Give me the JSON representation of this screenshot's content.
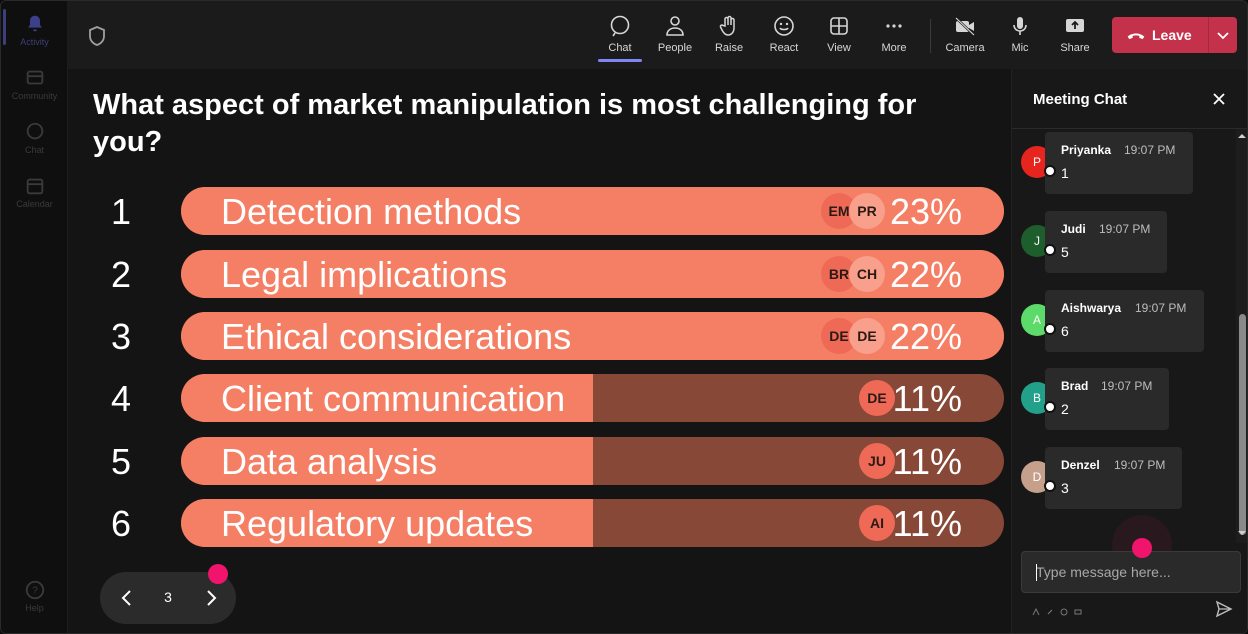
{
  "rail": {
    "items": [
      {
        "label": "Activity",
        "icon": "bell-icon"
      },
      {
        "label": "Community",
        "icon": "community-icon"
      },
      {
        "label": "Chat",
        "icon": "chat-icon"
      },
      {
        "label": "Calendar",
        "icon": "calendar-icon"
      }
    ],
    "help_label": "Help"
  },
  "toolbar": {
    "buttons": [
      {
        "label": "Chat",
        "icon": "chat-icon"
      },
      {
        "label": "People",
        "icon": "people-icon"
      },
      {
        "label": "Raise",
        "icon": "raise-hand-icon"
      },
      {
        "label": "React",
        "icon": "smiley-icon"
      },
      {
        "label": "View",
        "icon": "grid-view-icon"
      },
      {
        "label": "More",
        "icon": "more-icon"
      },
      {
        "label": "Camera",
        "icon": "camera-off-icon"
      },
      {
        "label": "Mic",
        "icon": "mic-icon"
      },
      {
        "label": "Share",
        "icon": "share-icon"
      }
    ],
    "leave_label": "Leave",
    "leave_color": "#c4314b",
    "accent_color": "#7f85f5"
  },
  "poll": {
    "question": "What aspect of market manipulation is most challenging for you?",
    "options": [
      {
        "num": "1",
        "label": "Detection methods",
        "percent_text": "23%",
        "fill_fraction": 1.0,
        "avatars": [
          "EM",
          "PR"
        ]
      },
      {
        "num": "2",
        "label": "Legal implications",
        "percent_text": "22%",
        "fill_fraction": 1.0,
        "avatars": [
          "BR",
          "CH"
        ]
      },
      {
        "num": "3",
        "label": "Ethical considerations",
        "percent_text": "22%",
        "fill_fraction": 1.0,
        "avatars": [
          "DE",
          "DE"
        ]
      },
      {
        "num": "4",
        "label": "Client communication",
        "percent_text": "11%",
        "fill_fraction": 0.5,
        "avatars": [
          "DE"
        ]
      },
      {
        "num": "5",
        "label": "Data analysis",
        "percent_text": "11%",
        "fill_fraction": 0.5,
        "avatars": [
          "JU"
        ]
      },
      {
        "num": "6",
        "label": "Regulatory updates",
        "percent_text": "11%",
        "fill_fraction": 0.5,
        "avatars": [
          "AI"
        ]
      }
    ],
    "bar_color": "#f47f64",
    "bar_track_color": "#874837"
  },
  "pager": {
    "page": "3"
  },
  "chat": {
    "title": "Meeting Chat",
    "messages": [
      {
        "initial": "P",
        "name": "Priyanka",
        "time": "19:07 PM",
        "text": "1",
        "color": "#e5251e"
      },
      {
        "initial": "J",
        "name": "Judi",
        "time": "19:07 PM",
        "text": "5",
        "color": "#1d5e2c"
      },
      {
        "initial": "A",
        "name": "Aishwarya",
        "time": "19:07 PM",
        "text": "6",
        "color": "#5cdb6a"
      },
      {
        "initial": "B",
        "name": "Brad",
        "time": "19:07 PM",
        "text": "2",
        "color": "#23a08a"
      },
      {
        "initial": "D",
        "name": "Denzel",
        "time": "19:07 PM",
        "text": "3",
        "color": "#c7a08c"
      }
    ],
    "input_placeholder": "Type message here..."
  }
}
